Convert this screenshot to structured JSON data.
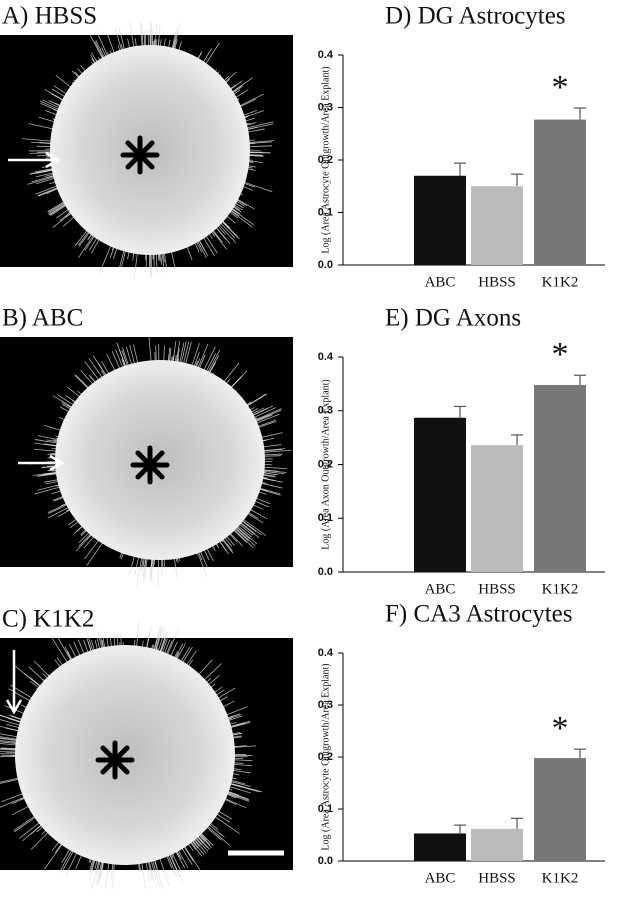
{
  "panels": [
    {
      "label": "A) HBSS"
    },
    {
      "label": "B) ABC"
    },
    {
      "label": "C) K1K2"
    }
  ],
  "chart_data": [
    {
      "type": "bar",
      "title": "D) DG Astrocytes",
      "y_label": "Log (Area Astrocyte Outgrowth/Area Explant)",
      "categories": [
        "ABC",
        "HBSS",
        "K1K2"
      ],
      "values": [
        0.17,
        0.15,
        0.277
      ],
      "errors": [
        0.024,
        0.023,
        0.022
      ],
      "colors": [
        "#111111",
        "#bbbbbb",
        "#777777"
      ],
      "ylim": [
        0,
        0.4
      ],
      "yticks": [
        {
          "value": 0,
          "label": "0.0"
        },
        0.1,
        0.2,
        0.3,
        0.4
      ],
      "annotation": "*"
    },
    {
      "type": "bar",
      "title": "E) DG Axons",
      "y_label": "Log (Area Axon Outgrowth/Area Explant)",
      "categories": [
        "ABC",
        "HBSS",
        "K1K2"
      ],
      "values": [
        0.287,
        0.236,
        0.348
      ],
      "errors": [
        0.021,
        0.019,
        0.018
      ],
      "colors": [
        "#111111",
        "#bbbbbb",
        "#777777"
      ],
      "ylim": [
        0,
        0.4
      ],
      "yticks": [
        {
          "value": 0,
          "label": "0.0"
        },
        0.1,
        0.2,
        0.3,
        0.4
      ],
      "annotation": "*"
    },
    {
      "type": "bar",
      "title": "F) CA3 Astrocytes",
      "y_label": "Log (Area Astrocyte Outgrowth/Area Explant)",
      "categories": [
        "ABC",
        "HBSS",
        "K1K2"
      ],
      "values": [
        0.053,
        0.062,
        0.198
      ],
      "errors": [
        0.016,
        0.02,
        0.017
      ],
      "colors": [
        "#111111",
        "#bbbbbb",
        "#777777"
      ],
      "ylim": [
        0,
        0.4
      ],
      "yticks": [
        {
          "value": 0,
          "label": "0.0"
        },
        0.1,
        0.2,
        0.3,
        0.4
      ],
      "annotation": "*"
    }
  ]
}
